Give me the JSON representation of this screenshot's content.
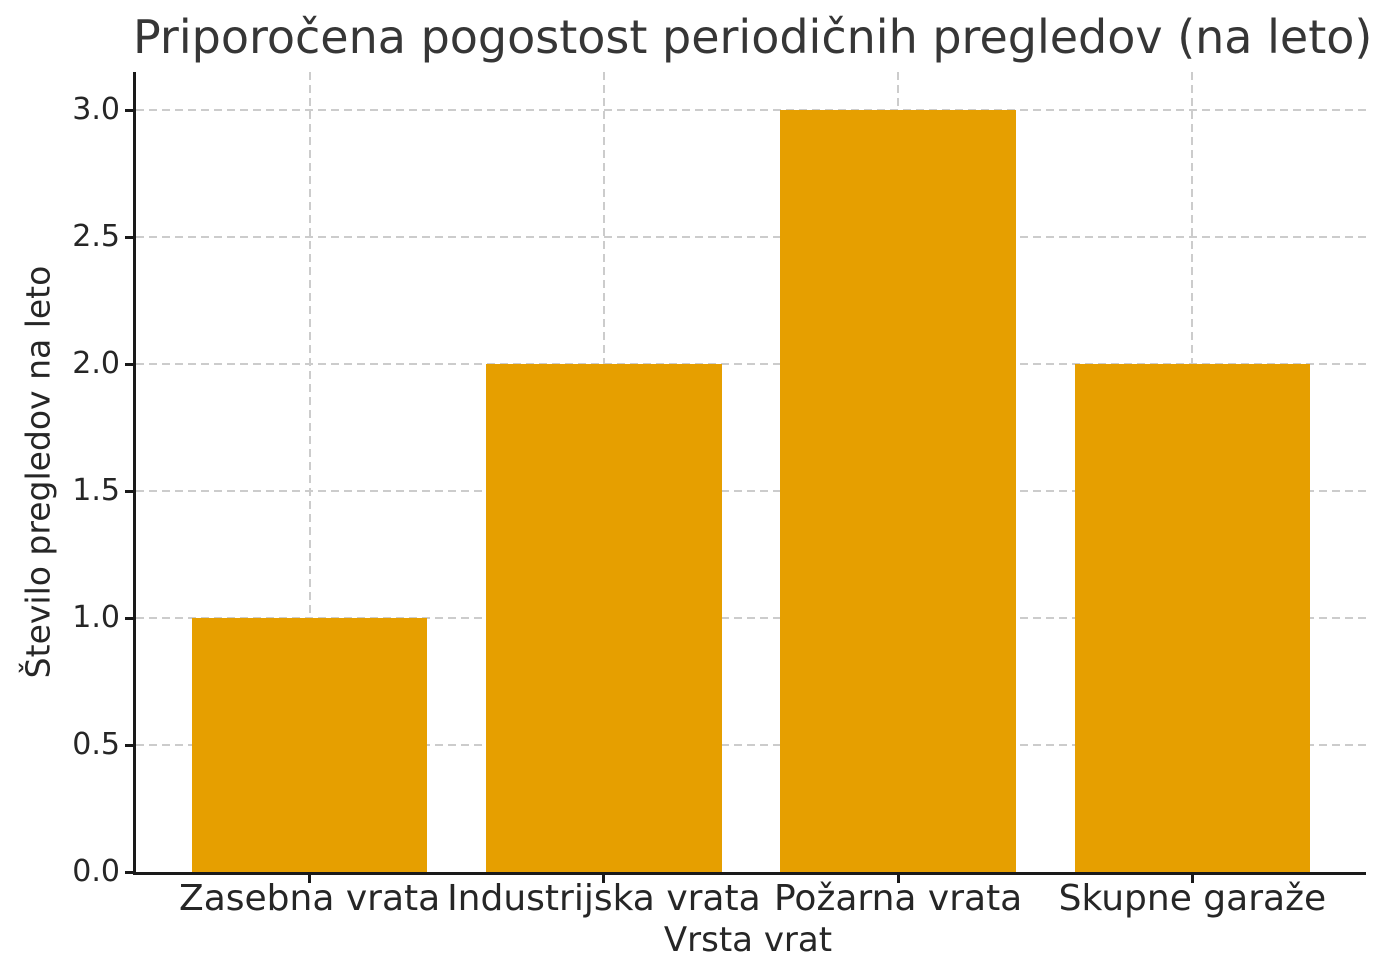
{
  "chart_data": {
    "type": "bar",
    "title": "Priporočena pogostost periodičnih pregledov (na leto)",
    "xlabel": "Vrsta vrat",
    "ylabel": "Število pregledov na leto",
    "categories": [
      "Zasebna vrata",
      "Industrijska vrata",
      "Požarna vrata",
      "Skupne garaže"
    ],
    "values": [
      1,
      2,
      3,
      2
    ],
    "ytick_values": [
      0,
      0.5,
      1,
      1.5,
      2,
      2.5,
      3
    ],
    "ytick_labels": [
      "0.0",
      "0.5",
      "1.0",
      "1.5",
      "2.0",
      "2.5",
      "3.0"
    ],
    "ylim": [
      0,
      3.15
    ],
    "xlim": [
      -0.59,
      3.59
    ],
    "bar_width": 0.8,
    "grid": "dashed-both-axes",
    "legend": "none",
    "spines": "left-bottom-only",
    "colors": {
      "bar": "#E69F00",
      "grid": "#cccccc",
      "axis": "#1a1a1a",
      "text": "#262626",
      "title": "#363636",
      "background": "#ffffff"
    }
  }
}
